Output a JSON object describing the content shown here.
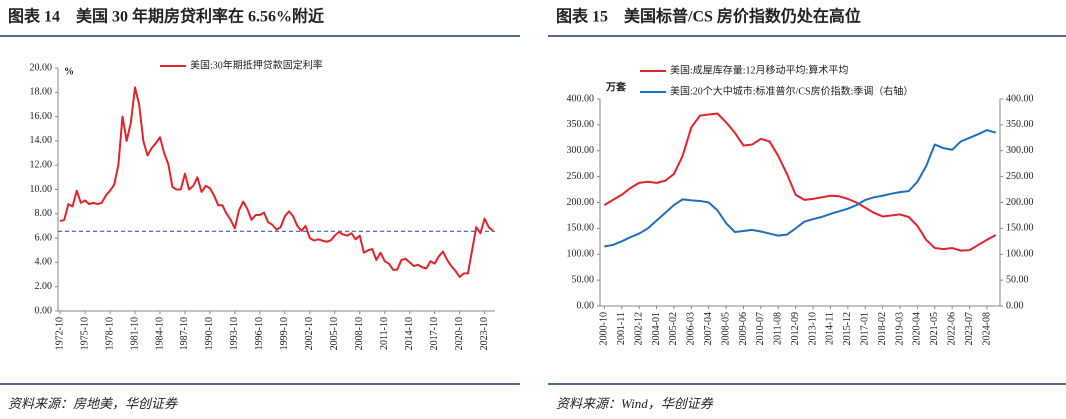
{
  "chart_data": [
    {
      "type": "line",
      "title": "图表 14　美国 30 年期房贷利率在 6.56%附近",
      "source": "资料来源：房地美，华创证券",
      "y_unit": "%",
      "categories": [
        "1972-10",
        null,
        null,
        null,
        null,
        null,
        "1975-10",
        null,
        null,
        null,
        null,
        null,
        "1978-10",
        null,
        null,
        null,
        null,
        null,
        "1981-10",
        null,
        null,
        null,
        null,
        null,
        "1984-10",
        null,
        null,
        null,
        null,
        null,
        "1987-10",
        null,
        null,
        null,
        null,
        null,
        "1990-10",
        null,
        null,
        null,
        null,
        null,
        "1993-10",
        null,
        null,
        null,
        null,
        null,
        "1996-10",
        null,
        null,
        null,
        null,
        null,
        "1999-10",
        null,
        null,
        null,
        null,
        null,
        "2002-10",
        null,
        null,
        null,
        null,
        null,
        "2005-10",
        null,
        null,
        null,
        null,
        null,
        "2008-10",
        null,
        null,
        null,
        null,
        null,
        "2011-10",
        null,
        null,
        null,
        null,
        null,
        "2014-10",
        null,
        null,
        null,
        null,
        null,
        "2017-10",
        null,
        null,
        null,
        null,
        null,
        "2020-10",
        null,
        null,
        null,
        null,
        null,
        "2023-10",
        null,
        null
      ],
      "series": [
        {
          "name": "美国:30年期抵押贷款固定利率",
          "color": "#e3232a",
          "values": [
            7.4,
            7.5,
            8.8,
            8.6,
            9.9,
            8.9,
            9.1,
            8.8,
            8.9,
            8.8,
            8.9,
            9.5,
            9.9,
            10.4,
            12.0,
            16.0,
            14.0,
            15.5,
            18.4,
            17.0,
            14.0,
            12.8,
            13.4,
            13.8,
            14.3,
            13.0,
            12.1,
            10.2,
            10.0,
            10.0,
            11.3,
            10.0,
            10.3,
            11.0,
            9.8,
            10.3,
            10.1,
            9.5,
            8.7,
            8.7,
            8.0,
            7.5,
            6.8,
            8.3,
            9.0,
            8.4,
            7.5,
            7.9,
            7.9,
            8.1,
            7.3,
            7.1,
            6.7,
            6.9,
            7.8,
            8.2,
            7.8,
            7.0,
            6.6,
            7.0,
            6.0,
            5.8,
            5.9,
            5.8,
            5.7,
            5.8,
            6.2,
            6.5,
            6.3,
            6.2,
            6.4,
            5.9,
            6.2,
            4.8,
            5.0,
            5.1,
            4.2,
            4.8,
            4.1,
            3.9,
            3.4,
            3.4,
            4.2,
            4.3,
            4.0,
            3.7,
            3.8,
            3.6,
            3.5,
            4.1,
            3.9,
            4.5,
            4.9,
            4.2,
            3.7,
            3.3,
            2.8,
            3.1,
            3.1,
            5.0,
            6.9,
            6.4,
            7.6,
            6.9,
            6.6
          ]
        }
      ],
      "ref_line": {
        "value": 6.56,
        "color": "#2f5fc4"
      },
      "ylim": [
        0,
        20
      ],
      "yticks": [
        {
          "value": 0,
          "label": "0.00"
        },
        {
          "value": 2,
          "label": "2.00"
        },
        {
          "value": 4,
          "label": "4.00"
        },
        {
          "value": 6,
          "label": "6.00"
        },
        {
          "value": 8,
          "label": "8.00"
        },
        {
          "value": 10,
          "label": "10.00"
        },
        {
          "value": 12,
          "label": "12.00"
        },
        {
          "value": 14,
          "label": "14.00"
        },
        {
          "value": 16,
          "label": "16.00"
        },
        {
          "value": 18,
          "label": "18.00"
        },
        {
          "value": 20,
          "label": "20.00"
        }
      ],
      "grid": false
    },
    {
      "type": "line",
      "title": "图表 15　美国标普/CS 房价指数仍处在高位",
      "source": "资料来源：Wind，华创证券",
      "y_unit": "万套",
      "categories": [
        "2000-10",
        null,
        "2001-11",
        null,
        "2002-12",
        null,
        "2004-01",
        null,
        "2005-02",
        null,
        "2006-03",
        null,
        "2007-04",
        null,
        "2008-05",
        null,
        "2009-06",
        null,
        "2010-07",
        null,
        "2011-08",
        null,
        "2012-09",
        null,
        "2013-10",
        null,
        "2014-11",
        null,
        "2015-12",
        null,
        "2017-01",
        null,
        "2018-02",
        null,
        "2019-03",
        null,
        "2020-04",
        null,
        "2021-05",
        null,
        "2022-06",
        null,
        "2023-07",
        null,
        "2024-08",
        null
      ],
      "series": [
        {
          "name": "美国:成屋库存量:12月移动平均:算术平均",
          "color": "#e3232a",
          "values": [
            195,
            205,
            215,
            228,
            238,
            240,
            238,
            242,
            255,
            290,
            345,
            368,
            370,
            372,
            355,
            335,
            310,
            312,
            323,
            318,
            290,
            255,
            215,
            205,
            207,
            210,
            213,
            212,
            207,
            200,
            190,
            180,
            173,
            175,
            177,
            172,
            155,
            128,
            112,
            110,
            112,
            107,
            108,
            118,
            128,
            137
          ]
        },
        {
          "name": "美国:20个大中城市:标准普尔/CS房价指数:季调（右轴）",
          "color": "#1f6fc0",
          "axis": "y2",
          "values": [
            115,
            118,
            125,
            133,
            140,
            150,
            165,
            180,
            195,
            206,
            204,
            203,
            200,
            185,
            160,
            143,
            145,
            147,
            144,
            140,
            136,
            138,
            150,
            163,
            168,
            172,
            178,
            183,
            188,
            195,
            205,
            210,
            213,
            217,
            220,
            222,
            240,
            270,
            312,
            305,
            302,
            318,
            325,
            332,
            340,
            335
          ]
        }
      ],
      "ylim": [
        0,
        400
      ],
      "yticks": [
        {
          "value": 0,
          "label": "0.00"
        },
        {
          "value": 50,
          "label": "50.00"
        },
        {
          "value": 100,
          "label": "100.00"
        },
        {
          "value": 150,
          "label": "150.00"
        },
        {
          "value": 200,
          "label": "200.00"
        },
        {
          "value": 250,
          "label": "250.00"
        },
        {
          "value": 300,
          "label": "300.00"
        },
        {
          "value": 350,
          "label": "350.00"
        },
        {
          "value": 400,
          "label": "400.00"
        }
      ],
      "y2lim": [
        0,
        400
      ],
      "y2ticks": [
        {
          "value": 0,
          "label": "0.00"
        },
        {
          "value": 50,
          "label": "50.00"
        },
        {
          "value": 100,
          "label": "100.00"
        },
        {
          "value": 150,
          "label": "150.00"
        },
        {
          "value": 200,
          "label": "200.00"
        },
        {
          "value": 250,
          "label": "250.00"
        },
        {
          "value": 300,
          "label": "300.00"
        },
        {
          "value": 350,
          "label": "350.00"
        },
        {
          "value": 400,
          "label": "400.00"
        }
      ],
      "grid": false
    }
  ]
}
